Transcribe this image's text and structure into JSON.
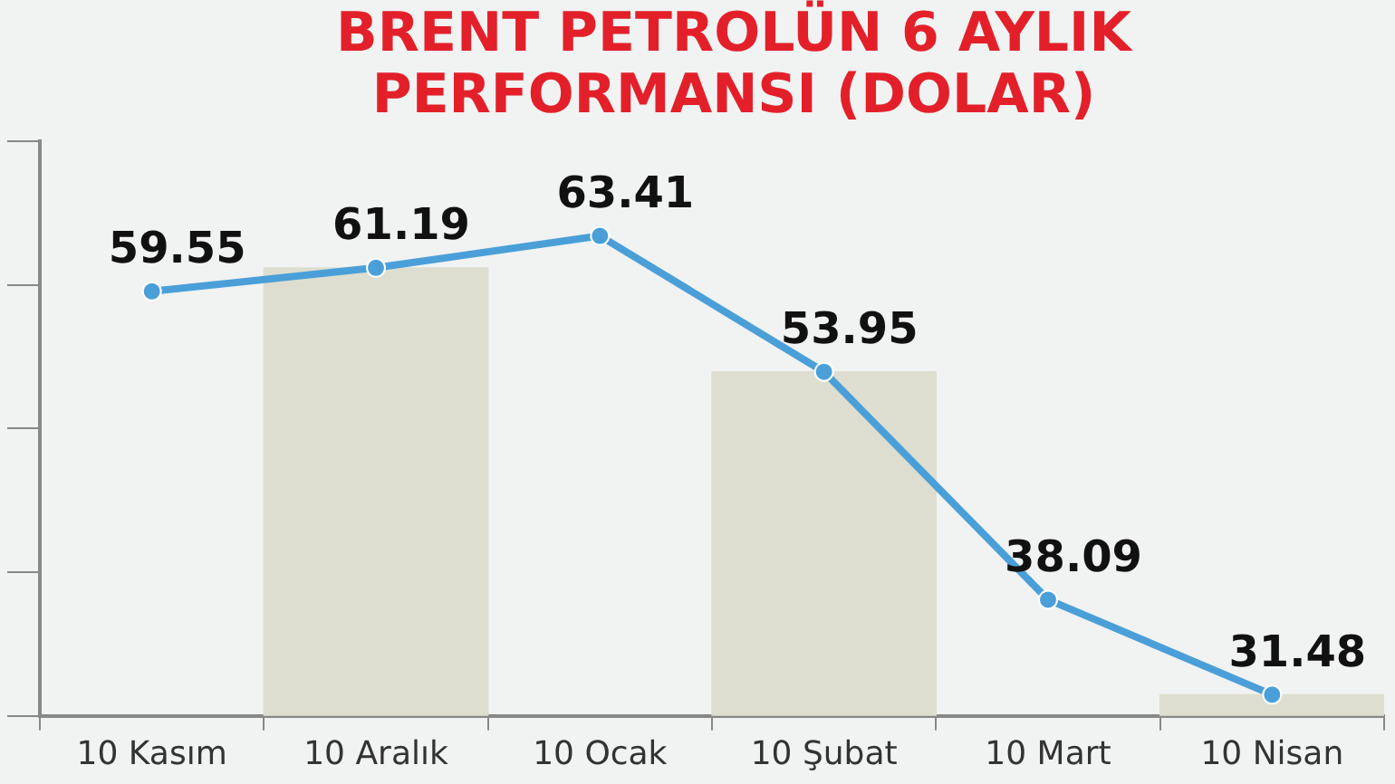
{
  "chart_data": {
    "type": "line",
    "title": "BRENT PETROLÜN 6 AYLIK PERFORMANSI (DOLAR)",
    "categories": [
      "10 Kasım",
      "10 Aralık",
      "10 Ocak",
      "10 Şubat",
      "10 Mart",
      "10 Nisan"
    ],
    "series": [
      {
        "type": "bar",
        "color": "#dddecf",
        "values": [
          null,
          61.19,
          null,
          53.95,
          null,
          31.48
        ]
      },
      {
        "color": "#4a9fd8",
        "values": [
          59.55,
          61.19,
          63.41,
          53.95,
          38.09,
          31.48
        ],
        "value_labels": [
          "59.55",
          "61.19",
          "63.41",
          "53.95",
          "38.09",
          "31.48"
        ]
      }
    ],
    "tick_labels": "x",
    "grid": false,
    "legend": false,
    "marker": "circle",
    "line_style": "solid"
  }
}
